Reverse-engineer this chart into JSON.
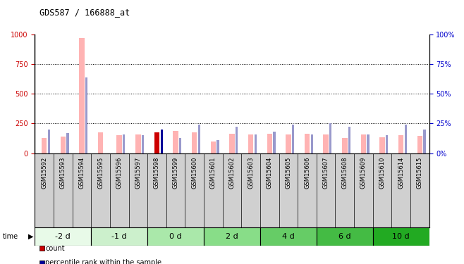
{
  "title": "GDS587 / 166888_at",
  "samples": [
    "GSM15592",
    "GSM15593",
    "GSM15594",
    "GSM15595",
    "GSM15596",
    "GSM15597",
    "GSM15598",
    "GSM15599",
    "GSM15600",
    "GSM15601",
    "GSM15602",
    "GSM15603",
    "GSM15604",
    "GSM15605",
    "GSM15606",
    "GSM15607",
    "GSM15608",
    "GSM15609",
    "GSM15610",
    "GSM15614",
    "GSM15615"
  ],
  "values_absent": [
    130,
    140,
    970,
    175,
    150,
    155,
    0,
    185,
    175,
    95,
    165,
    155,
    165,
    155,
    165,
    155,
    130,
    155,
    135,
    150,
    145
  ],
  "ranks_absent": [
    20,
    17,
    64,
    0,
    16,
    15,
    0,
    13,
    24,
    11,
    22,
    16,
    18,
    24,
    16,
    25,
    22,
    16,
    15,
    24,
    20
  ],
  "count_value": [
    0,
    0,
    0,
    0,
    0,
    0,
    175,
    0,
    0,
    0,
    0,
    0,
    0,
    0,
    0,
    0,
    0,
    0,
    0,
    0,
    0
  ],
  "count_rank": [
    0,
    0,
    0,
    0,
    0,
    0,
    20,
    0,
    0,
    0,
    0,
    0,
    0,
    0,
    0,
    0,
    0,
    0,
    0,
    0,
    0
  ],
  "time_groups": [
    {
      "label": "-2 d",
      "start": 0,
      "end": 3,
      "color": "#e8fae8"
    },
    {
      "label": "-1 d",
      "start": 3,
      "end": 6,
      "color": "#ccf0cc"
    },
    {
      "label": "0 d",
      "start": 6,
      "end": 9,
      "color": "#aae8aa"
    },
    {
      "label": "2 d",
      "start": 9,
      "end": 12,
      "color": "#88dd88"
    },
    {
      "label": "4 d",
      "start": 12,
      "end": 15,
      "color": "#66cc66"
    },
    {
      "label": "6 d",
      "start": 15,
      "end": 18,
      "color": "#44bb44"
    },
    {
      "label": "10 d",
      "start": 18,
      "end": 21,
      "color": "#22aa22"
    }
  ],
  "ylim_left": [
    0,
    1000
  ],
  "ylim_right": [
    0,
    100
  ],
  "yticks_left": [
    0,
    250,
    500,
    750,
    1000
  ],
  "yticks_right": [
    0,
    25,
    50,
    75,
    100
  ],
  "color_value_absent": "#ffb3b3",
  "color_rank_absent": "#9999cc",
  "color_count": "#cc0000",
  "color_count_rank": "#000099",
  "bg_color": "#ffffff",
  "axis_left_color": "#cc0000",
  "axis_right_color": "#0000cc",
  "xlabel_bg": "#d0d0d0"
}
